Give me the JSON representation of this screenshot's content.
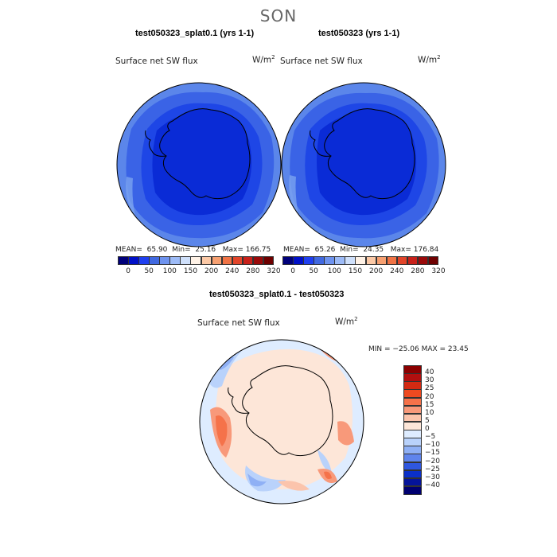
{
  "season": "SON",
  "top_left": {
    "title": "test050323_splat0.1 (yrs 1-1)",
    "variable": "Surface net SW flux",
    "units_base": "W/m",
    "units_exp": "2",
    "mean_label": "MEAN=",
    "mean": "65.90",
    "min_label": "Min=",
    "min": "25.16",
    "max_label": "Max=",
    "max": "166.75"
  },
  "top_right": {
    "title": "test050323 (yrs 1-1)",
    "variable": "Surface net SW flux",
    "units_base": "W/m",
    "units_exp": "2",
    "mean_label": "MEAN=",
    "mean": "65.26",
    "min_label": "Min=",
    "min": "24.35",
    "max_label": "Max=",
    "max": "176.84"
  },
  "abs_colorbar": {
    "labels": [
      "0",
      "50",
      "100",
      "150",
      "200",
      "240",
      "280",
      "320"
    ],
    "colors": [
      "#00007a",
      "#0010c8",
      "#1f3ff0",
      "#4169e1",
      "#6e93ef",
      "#9dbbf7",
      "#cfe0fb",
      "#fff2e6",
      "#fcc9a6",
      "#f7a071",
      "#f07345",
      "#e2452a",
      "#c8211a",
      "#9a0a0a",
      "#6e0000"
    ]
  },
  "difference": {
    "title": "test050323_splat0.1 - test050323",
    "variable": "Surface net SW flux",
    "units_base": "W/m",
    "units_exp": "2",
    "minmax_text": "MIN = −25.06 MAX =  23.45",
    "colorbar_labels": [
      "40",
      "30",
      "25",
      "20",
      "15",
      "10",
      "5",
      "0",
      "−5",
      "−10",
      "−15",
      "−20",
      "−25",
      "−30",
      "−40"
    ],
    "colorbar_colors": [
      "#8b0000",
      "#b20f0f",
      "#d42a12",
      "#ee4a20",
      "#f5724a",
      "#f8997a",
      "#fbc4ac",
      "#fde6d8",
      "#deecff",
      "#b9d2fb",
      "#8fb0f5",
      "#5f84ec",
      "#2f57e0",
      "#0b30c8",
      "#05149a",
      "#000070"
    ]
  },
  "map_colors": {
    "abs_deep": "#0a2bd6",
    "abs_mid": "#1e46e6",
    "abs_light": "#3a63e6",
    "abs_outer": "#5b86ea",
    "diff_land": "#fde6d8",
    "diff_ocean": "#deecff"
  }
}
